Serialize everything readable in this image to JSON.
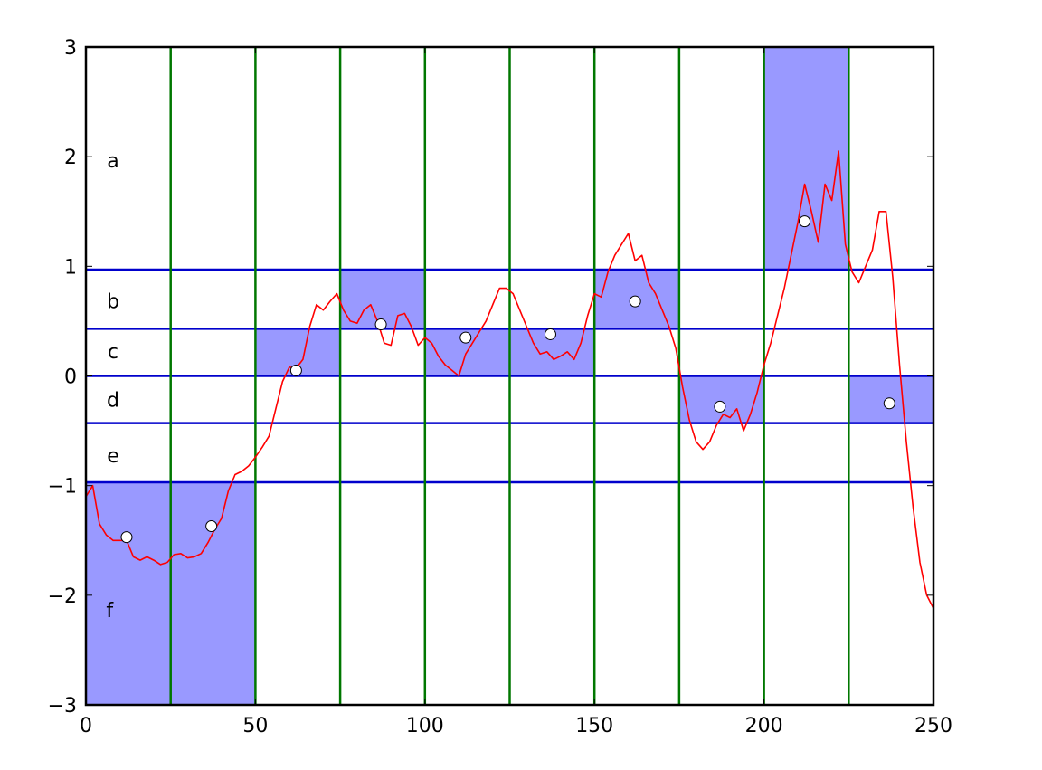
{
  "chart_data": {
    "type": "line",
    "title": "",
    "xlabel": "",
    "ylabel": "",
    "xlim": [
      0,
      250
    ],
    "ylim": [
      -3,
      3
    ],
    "grid": false,
    "x_ticks": [
      0,
      50,
      100,
      150,
      200,
      250
    ],
    "x_tick_labels": [
      "0",
      "50",
      "100",
      "150",
      "200",
      "250"
    ],
    "y_ticks": [
      -3,
      -2,
      -1,
      0,
      1,
      2,
      3
    ],
    "y_tick_labels": [
      "−3",
      "−2",
      "−1",
      "0",
      "1",
      "2",
      "3"
    ],
    "colors": {
      "line": "#ff0000",
      "band_fill": "#9999ff",
      "horizontal_lines": "#0000cc",
      "vertical_lines": "#007700",
      "marker_fill": "#ffffff",
      "marker_edge": "#000000",
      "axes": "#000000"
    },
    "horizontal_lines_y": [
      0.97,
      0.43,
      0.0,
      -0.43,
      -0.97
    ],
    "vertical_lines_x": [
      25,
      50,
      75,
      100,
      125,
      150,
      175,
      200,
      225
    ],
    "band_labels": [
      {
        "text": "a",
        "x": 8,
        "y": 1.95
      },
      {
        "text": "b",
        "x": 8,
        "y": 0.67
      },
      {
        "text": "c",
        "x": 8,
        "y": 0.21
      },
      {
        "text": "d",
        "x": 8,
        "y": -0.23
      },
      {
        "text": "e",
        "x": 8,
        "y": -0.74
      },
      {
        "text": "f",
        "x": 7,
        "y": -2.15
      }
    ],
    "shaded_regions": [
      {
        "x0": 0,
        "x1": 25,
        "y0": -3,
        "y1": -0.97
      },
      {
        "x0": 25,
        "x1": 50,
        "y0": -3,
        "y1": -0.97
      },
      {
        "x0": 50,
        "x1": 75,
        "y0": 0,
        "y1": 0.43
      },
      {
        "x0": 75,
        "x1": 100,
        "y0": 0.43,
        "y1": 0.97
      },
      {
        "x0": 100,
        "x1": 125,
        "y0": 0,
        "y1": 0.43
      },
      {
        "x0": 125,
        "x1": 150,
        "y0": 0,
        "y1": 0.43
      },
      {
        "x0": 150,
        "x1": 175,
        "y0": 0.43,
        "y1": 0.97
      },
      {
        "x0": 175,
        "x1": 200,
        "y0": -0.43,
        "y1": 0
      },
      {
        "x0": 200,
        "x1": 225,
        "y0": 0.97,
        "y1": 3
      },
      {
        "x0": 225,
        "x1": 250,
        "y0": -0.43,
        "y1": 0
      }
    ],
    "markers": [
      {
        "x": 12,
        "y": -1.47
      },
      {
        "x": 37,
        "y": -1.37
      },
      {
        "x": 62,
        "y": 0.05
      },
      {
        "x": 87,
        "y": 0.47
      },
      {
        "x": 112,
        "y": 0.35
      },
      {
        "x": 137,
        "y": 0.38
      },
      {
        "x": 162,
        "y": 0.68
      },
      {
        "x": 187,
        "y": -0.28
      },
      {
        "x": 212,
        "y": 1.41
      },
      {
        "x": 237,
        "y": -0.25
      }
    ],
    "series": [
      {
        "x": [
          0,
          2,
          4,
          6,
          8,
          10,
          12,
          14,
          16,
          18,
          20,
          22,
          24,
          26,
          28,
          30,
          32,
          34,
          36,
          38,
          40,
          42,
          44,
          46,
          48,
          50,
          52,
          54,
          56,
          58,
          60,
          62,
          64,
          66,
          68,
          70,
          72,
          74,
          76,
          78,
          80,
          82,
          84,
          86,
          88,
          90,
          92,
          94,
          96,
          98,
          100,
          102,
          104,
          106,
          108,
          110,
          112,
          114,
          116,
          118,
          120,
          122,
          124,
          126,
          128,
          130,
          132,
          134,
          136,
          138,
          140,
          142,
          144,
          146,
          148,
          150,
          152,
          154,
          156,
          158,
          160,
          162,
          164,
          166,
          168,
          170,
          172,
          174,
          176,
          178,
          180,
          182,
          184,
          186,
          188,
          190,
          192,
          194,
          196,
          198,
          200,
          202,
          204,
          206,
          208,
          210,
          212,
          214,
          216,
          218,
          220,
          222,
          224,
          226,
          228,
          230,
          232,
          234,
          236,
          238,
          240,
          242,
          244,
          246,
          248,
          250
        ],
        "y": [
          -1.1,
          -1.0,
          -1.35,
          -1.45,
          -1.5,
          -1.5,
          -1.5,
          -1.65,
          -1.68,
          -1.65,
          -1.68,
          -1.72,
          -1.7,
          -1.63,
          -1.62,
          -1.66,
          -1.65,
          -1.62,
          -1.52,
          -1.4,
          -1.3,
          -1.05,
          -0.9,
          -0.87,
          -0.82,
          -0.74,
          -0.65,
          -0.55,
          -0.3,
          -0.05,
          0.08,
          0.07,
          0.15,
          0.45,
          0.65,
          0.6,
          0.68,
          0.75,
          0.6,
          0.5,
          0.48,
          0.6,
          0.65,
          0.5,
          0.3,
          0.28,
          0.55,
          0.57,
          0.45,
          0.28,
          0.35,
          0.3,
          0.18,
          0.1,
          0.05,
          0.0,
          0.2,
          0.3,
          0.4,
          0.5,
          0.65,
          0.8,
          0.8,
          0.75,
          0.6,
          0.45,
          0.3,
          0.2,
          0.22,
          0.15,
          0.18,
          0.22,
          0.15,
          0.3,
          0.55,
          0.75,
          0.72,
          0.95,
          1.1,
          1.2,
          1.3,
          1.05,
          1.1,
          0.85,
          0.75,
          0.6,
          0.45,
          0.25,
          -0.1,
          -0.4,
          -0.6,
          -0.67,
          -0.6,
          -0.45,
          -0.35,
          -0.38,
          -0.3,
          -0.5,
          -0.35,
          -0.15,
          0.1,
          0.3,
          0.55,
          0.8,
          1.1,
          1.4,
          1.75,
          1.5,
          1.22,
          1.75,
          1.6,
          2.05,
          1.2,
          0.95,
          0.85,
          1.0,
          1.15,
          1.5,
          1.5,
          0.9,
          0.1,
          -0.6,
          -1.2,
          -1.7,
          -2.0,
          -2.12
        ]
      }
    ]
  }
}
